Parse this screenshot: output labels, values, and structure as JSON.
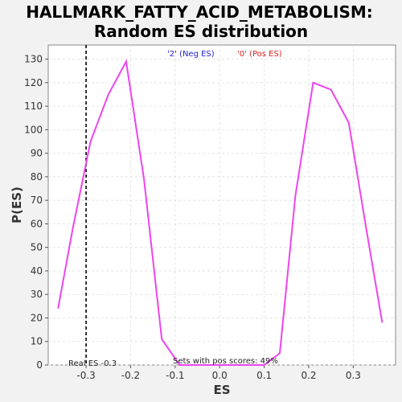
{
  "chart_data": {
    "type": "line",
    "title_line1": "HALLMARK_FATTY_ACID_METABOLISM:",
    "title_line2": "Random ES distribution",
    "xlabel": "ES",
    "ylabel": "P(ES)",
    "xlim": [
      -0.385,
      0.395
    ],
    "ylim": [
      0,
      136
    ],
    "xticks": [
      -0.3,
      -0.2,
      -0.1,
      0.0,
      0.1,
      0.2,
      0.3
    ],
    "xtick_labels": [
      "-0.3",
      "-0.2",
      "-0.1",
      "0.0",
      "0.1",
      "0.2",
      "0.3"
    ],
    "yticks": [
      0,
      10,
      20,
      30,
      40,
      50,
      60,
      70,
      80,
      90,
      100,
      110,
      120,
      130
    ],
    "grid": true,
    "line_color": "#ee44ee",
    "series": [
      {
        "x": [
          -0.363,
          -0.33,
          -0.29,
          -0.25,
          -0.21,
          -0.17,
          -0.13,
          -0.09,
          -0.05,
          -0.01,
          0.03,
          0.06,
          0.1,
          0.135,
          0.17,
          0.21,
          0.25,
          0.29,
          0.33,
          0.365
        ],
        "values": [
          24,
          58,
          95,
          115,
          129,
          79,
          11,
          0,
          0,
          0,
          0,
          0,
          0,
          5,
          72,
          120,
          117,
          103,
          57,
          18
        ]
      }
    ],
    "legend": [
      {
        "label": "'2' (Neg ES)",
        "color": "#2020dd"
      },
      {
        "label": "'0' (Pos ES)",
        "color": "#dd2020"
      }
    ],
    "real_es": {
      "value": -0.3,
      "label": "Real ES -0.3"
    },
    "pos_scores_text": "Sets with pos scores: 49%"
  }
}
